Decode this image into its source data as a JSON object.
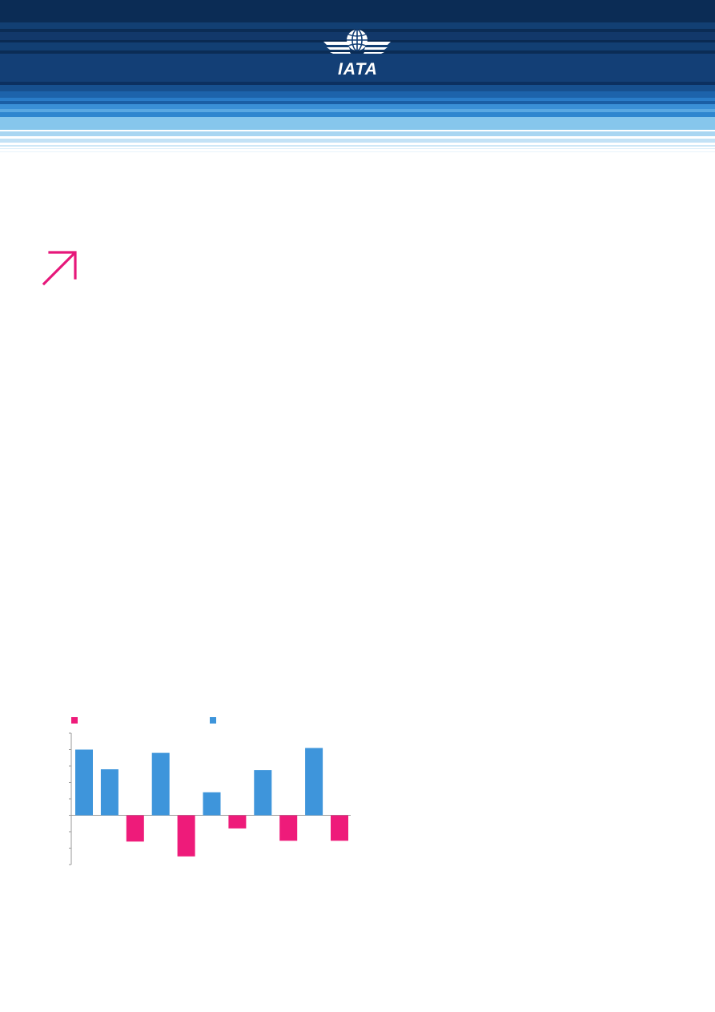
{
  "header": {
    "logo_text": "IATA",
    "logo_icon": "globe-wings-icon",
    "stripe_colors": [
      "#0b2c55",
      "#123f73",
      "#1a5ea5",
      "#2f86cf",
      "#86c6ec",
      "#cfe8f7"
    ]
  },
  "decoration": {
    "arrow_icon": "diagonal-arrow-icon",
    "arrow_color": "#e6177a"
  },
  "chart_data": {
    "type": "bar",
    "series_colors": [
      "#ee1b7a",
      "#3e95db"
    ],
    "values": [
      4,
      2.8,
      -1.6,
      3.8,
      -2.5,
      1.4,
      -0.8,
      2.75,
      -1.55,
      4.1,
      -1.55
    ],
    "value_colors": [
      "blue",
      "blue",
      "pink",
      "blue",
      "pink",
      "blue",
      "pink",
      "blue",
      "pink",
      "blue",
      "pink"
    ],
    "ylim": [
      -3,
      5
    ],
    "grid": false,
    "legend_placement": "top-left"
  }
}
